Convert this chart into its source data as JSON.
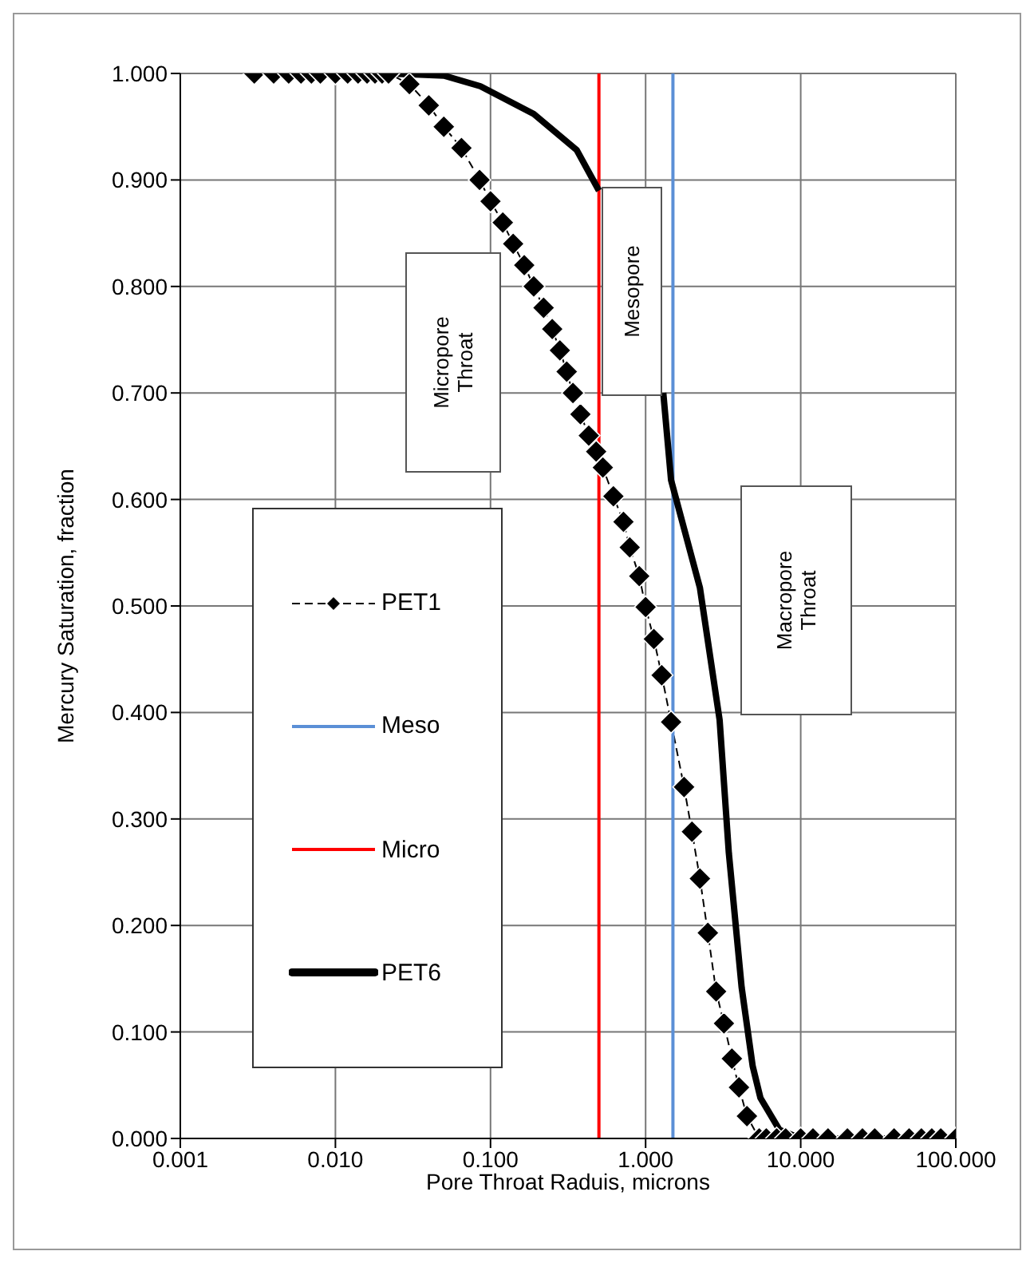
{
  "chart_data": {
    "type": "line",
    "xlabel": "Pore Throat Raduis, microns",
    "ylabel": "Mercury Saturation, fraction",
    "log": "x",
    "grid": true,
    "legend": "left",
    "xlim": [
      0.001,
      100
    ],
    "xticks": [
      {
        "value": 0.001,
        "label": "0.001"
      },
      {
        "value": 0.01,
        "label": "0.010"
      },
      {
        "value": 0.1,
        "label": "0.100"
      },
      {
        "value": 1,
        "label": "1.000"
      },
      {
        "value": 10,
        "label": "10.000"
      },
      {
        "value": 100,
        "label": "100.000"
      }
    ],
    "ylim": [
      0,
      1
    ],
    "yticks": [
      {
        "value": 0,
        "label": "0.000"
      },
      {
        "value": 0.1,
        "label": "0.100"
      },
      {
        "value": 0.2,
        "label": "0.200"
      },
      {
        "value": 0.3,
        "label": "0.300"
      },
      {
        "value": 0.4,
        "label": "0.400"
      },
      {
        "value": 0.5,
        "label": "0.500"
      },
      {
        "value": 0.6,
        "label": "0.600"
      },
      {
        "value": 0.7,
        "label": "0.700"
      },
      {
        "value": 0.8,
        "label": "0.800"
      },
      {
        "value": 0.9,
        "label": "0.900"
      },
      {
        "value": 1,
        "label": "1.000"
      }
    ],
    "series": [
      {
        "name": "PET1",
        "color": "#000000",
        "marker": "diamond",
        "line_style": "dashed",
        "x": [
          0.003,
          0.004,
          0.005,
          0.006,
          0.007,
          0.008,
          0.01,
          0.012,
          0.014,
          0.016,
          0.018,
          0.02,
          0.022,
          0.03,
          0.04,
          0.05,
          0.065,
          0.085,
          0.1,
          0.12,
          0.14,
          0.165,
          0.19,
          0.22,
          0.25,
          0.28,
          0.31,
          0.34,
          0.38,
          0.43,
          0.48,
          0.53,
          0.62,
          0.72,
          0.79,
          0.91,
          1.0,
          1.13,
          1.27,
          1.46,
          1.77,
          1.99,
          2.24,
          2.52,
          2.85,
          3.2,
          3.6,
          4.0,
          4.5,
          5.4,
          6,
          7,
          8,
          10,
          12,
          15,
          20,
          25,
          30,
          40,
          50,
          60,
          70,
          80,
          100
        ],
        "values": [
          1.0,
          1.0,
          1.0,
          1.0,
          1.0,
          1.0,
          1.0,
          1.0,
          1.0,
          1.0,
          1.0,
          1.0,
          1.0,
          0.99,
          0.97,
          0.95,
          0.93,
          0.9,
          0.88,
          0.86,
          0.84,
          0.82,
          0.8,
          0.78,
          0.76,
          0.74,
          0.72,
          0.7,
          0.68,
          0.66,
          0.645,
          0.63,
          0.603,
          0.579,
          0.555,
          0.528,
          0.499,
          0.469,
          0.435,
          0.391,
          0.33,
          0.288,
          0.244,
          0.193,
          0.138,
          0.108,
          0.075,
          0.048,
          0.021,
          0.0,
          0.0,
          0.0,
          0.0,
          0.0,
          0.0,
          0.0,
          0.0,
          0.0,
          0.0,
          0.0,
          0.0,
          0.0,
          0.0,
          0.0,
          0.0
        ]
      },
      {
        "name": "Meso",
        "color": "#5b8fd6",
        "marker": "none",
        "line_style": "solid",
        "x": [
          1.5,
          1.5
        ],
        "values": [
          0,
          1
        ]
      },
      {
        "name": "Micro",
        "color": "#ff0000",
        "marker": "none",
        "line_style": "solid",
        "x": [
          0.5,
          0.5
        ],
        "values": [
          0,
          1
        ]
      },
      {
        "name": "PET6",
        "color": "#000000",
        "marker": "none",
        "line_style": "solid",
        "x": [
          0.022,
          0.05,
          0.086,
          0.19,
          0.36,
          0.5,
          0.6,
          0.8,
          1.1,
          1.3,
          1.46,
          2.24,
          3.0,
          3.44,
          4.16,
          4.9,
          5.5,
          7.3,
          10,
          100
        ],
        "values": [
          1.0,
          0.998,
          0.988,
          0.962,
          0.928,
          0.89,
          null,
          null,
          null,
          0.7,
          0.618,
          0.517,
          0.393,
          0.268,
          0.142,
          0.068,
          0.038,
          0.008,
          0.0,
          0.0
        ]
      }
    ],
    "annotations": [
      "Micropore Throat",
      "Mesopore",
      "Macropore Throat"
    ]
  }
}
